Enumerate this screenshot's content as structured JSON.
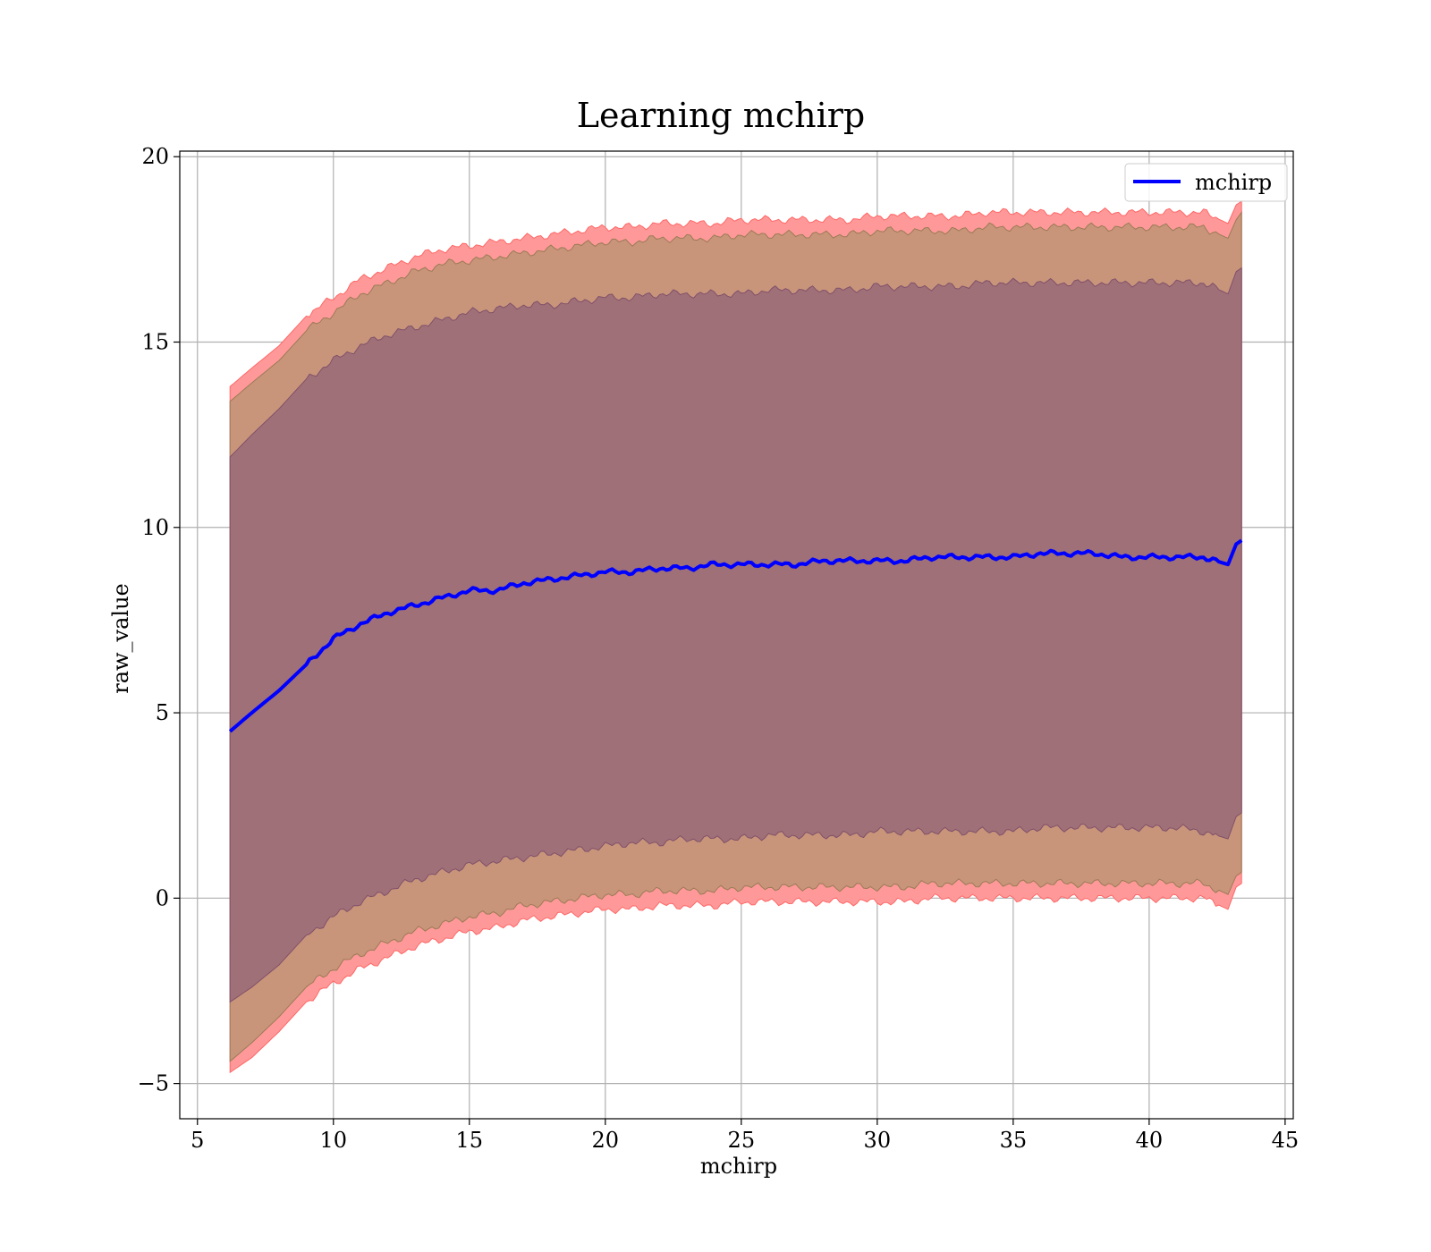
{
  "chart_data": {
    "type": "area",
    "title": "Learning mchirp",
    "xlabel": "mchirp",
    "ylabel": "raw_value",
    "xlim": [
      4.35,
      45.3
    ],
    "ylim": [
      -5.95,
      20.15
    ],
    "xticks": [
      5,
      10,
      15,
      20,
      25,
      30,
      35,
      40,
      45
    ],
    "yticks": [
      -5,
      0,
      5,
      10,
      15,
      20
    ],
    "xtick_labels": [
      "5",
      "10",
      "15",
      "20",
      "25",
      "30",
      "35",
      "40",
      "45"
    ],
    "ytick_labels": [
      "−5",
      "0",
      "5",
      "10",
      "15",
      "20"
    ],
    "grid": true,
    "legend": {
      "position": "top-right",
      "entries": [
        "mchirp"
      ]
    },
    "colors": {
      "line": "#0000ff",
      "band_outer": "#ff9999",
      "band_middle": "#c8957a",
      "band_inner": "#a07078",
      "grid": "#b0b0b0"
    },
    "x": [
      6.2,
      7,
      8,
      9,
      10,
      11,
      12,
      13,
      14,
      15,
      16,
      17,
      18,
      19,
      20,
      21,
      22,
      23,
      24,
      25,
      26,
      27,
      28,
      29,
      30,
      31,
      32,
      33,
      34,
      35,
      36,
      37,
      38,
      39,
      40,
      41,
      42,
      42.9,
      43.2,
      43.4
    ],
    "series": [
      {
        "name": "mchirp",
        "values": [
          4.5,
          5.0,
          5.6,
          6.3,
          7.0,
          7.4,
          7.7,
          7.9,
          8.1,
          8.3,
          8.3,
          8.5,
          8.6,
          8.7,
          8.8,
          8.8,
          8.9,
          8.9,
          9.0,
          9.0,
          9.0,
          9.0,
          9.1,
          9.1,
          9.1,
          9.1,
          9.2,
          9.2,
          9.2,
          9.2,
          9.3,
          9.3,
          9.3,
          9.2,
          9.2,
          9.2,
          9.2,
          9.0,
          9.55,
          9.65
        ]
      }
    ],
    "bands": [
      {
        "lower": [
          -4.7,
          -4.3,
          -3.6,
          -2.8,
          -2.3,
          -1.9,
          -1.6,
          -1.3,
          -1.1,
          -0.9,
          -0.8,
          -0.6,
          -0.5,
          -0.4,
          -0.3,
          -0.3,
          -0.2,
          -0.2,
          -0.2,
          -0.1,
          -0.1,
          -0.1,
          -0.1,
          -0.1,
          -0.1,
          -0.1,
          0.0,
          0.0,
          0.0,
          0.0,
          0.0,
          0.0,
          0.0,
          0.0,
          0.0,
          0.0,
          0.0,
          -0.3,
          0.3,
          0.4
        ],
        "upper": [
          13.8,
          14.3,
          14.9,
          15.7,
          16.2,
          16.7,
          17.0,
          17.3,
          17.5,
          17.6,
          17.7,
          17.8,
          17.9,
          18.0,
          18.1,
          18.1,
          18.2,
          18.2,
          18.2,
          18.3,
          18.3,
          18.3,
          18.3,
          18.3,
          18.4,
          18.4,
          18.4,
          18.4,
          18.5,
          18.5,
          18.5,
          18.5,
          18.5,
          18.5,
          18.5,
          18.5,
          18.5,
          18.2,
          18.7,
          18.8
        ]
      },
      {
        "lower": [
          -4.4,
          -3.9,
          -3.2,
          -2.4,
          -1.9,
          -1.5,
          -1.2,
          -0.9,
          -0.7,
          -0.5,
          -0.4,
          -0.2,
          -0.1,
          0.0,
          0.1,
          0.1,
          0.2,
          0.2,
          0.2,
          0.3,
          0.3,
          0.3,
          0.3,
          0.3,
          0.3,
          0.3,
          0.4,
          0.4,
          0.4,
          0.4,
          0.4,
          0.4,
          0.4,
          0.4,
          0.4,
          0.4,
          0.4,
          0.1,
          0.6,
          0.7
        ],
        "upper": [
          13.4,
          13.9,
          14.5,
          15.3,
          15.8,
          16.3,
          16.6,
          16.9,
          17.1,
          17.2,
          17.3,
          17.4,
          17.5,
          17.6,
          17.7,
          17.7,
          17.8,
          17.8,
          17.8,
          17.9,
          17.9,
          17.9,
          17.9,
          17.9,
          18.0,
          18.0,
          18.0,
          18.0,
          18.1,
          18.1,
          18.1,
          18.1,
          18.1,
          18.1,
          18.1,
          18.1,
          18.1,
          17.8,
          18.3,
          18.5
        ]
      },
      {
        "lower": [
          -2.8,
          -2.4,
          -1.8,
          -1.0,
          -0.5,
          -0.1,
          0.2,
          0.5,
          0.7,
          0.9,
          1.0,
          1.1,
          1.2,
          1.3,
          1.4,
          1.5,
          1.5,
          1.6,
          1.6,
          1.6,
          1.7,
          1.7,
          1.7,
          1.7,
          1.8,
          1.8,
          1.8,
          1.8,
          1.8,
          1.8,
          1.9,
          1.9,
          1.9,
          1.9,
          1.9,
          1.9,
          1.8,
          1.6,
          2.2,
          2.3
        ],
        "upper": [
          11.9,
          12.5,
          13.2,
          14.0,
          14.5,
          14.9,
          15.2,
          15.4,
          15.6,
          15.8,
          15.9,
          16.0,
          16.0,
          16.1,
          16.2,
          16.2,
          16.3,
          16.3,
          16.3,
          16.3,
          16.4,
          16.4,
          16.4,
          16.4,
          16.5,
          16.5,
          16.5,
          16.5,
          16.6,
          16.6,
          16.6,
          16.6,
          16.6,
          16.6,
          16.6,
          16.6,
          16.6,
          16.3,
          16.9,
          17.0
        ]
      }
    ]
  }
}
